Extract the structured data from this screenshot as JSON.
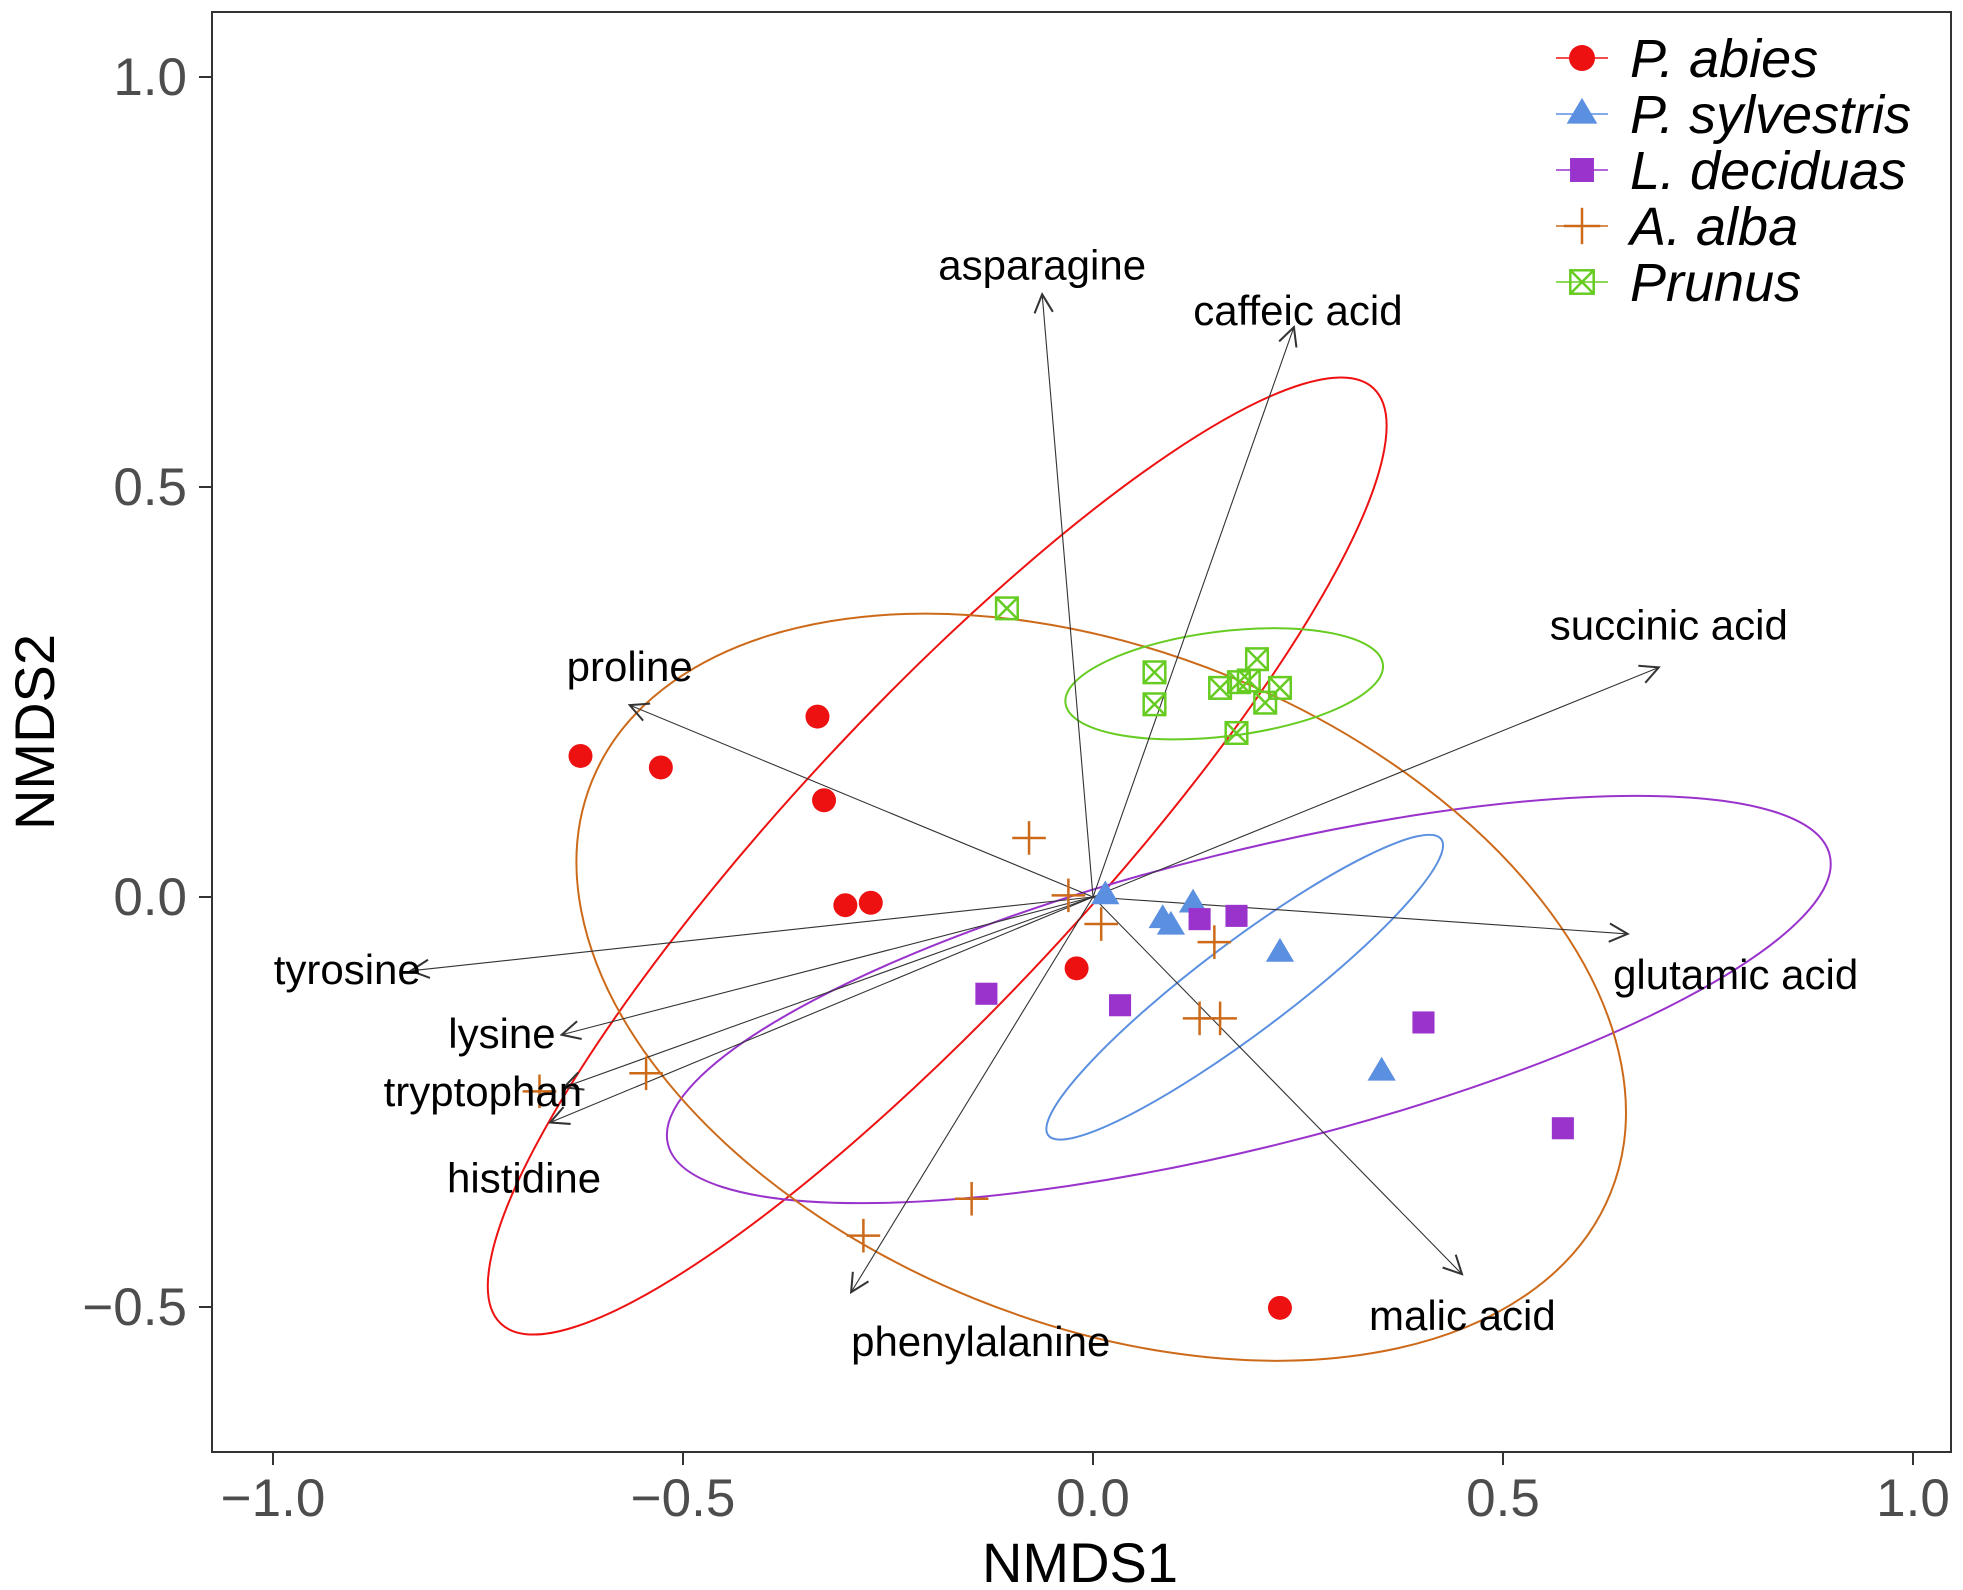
{
  "chart_data": {
    "type": "scatter",
    "xlabel": "NMDS1",
    "ylabel": "NMDS2",
    "xlim": [
      -1.08,
      1.05
    ],
    "ylim": [
      -0.68,
      1.08
    ],
    "x_ticks": [
      {
        "value": -1.0,
        "label": "−1.0"
      },
      {
        "value": -0.5,
        "label": "−0.5"
      },
      {
        "value": 0.0,
        "label": "0.0"
      },
      {
        "value": 0.5,
        "label": "0.5"
      },
      {
        "value": 1.0,
        "label": "1.0"
      }
    ],
    "y_ticks": [
      {
        "value": -0.5,
        "label": "−0.5"
      },
      {
        "value": 0.0,
        "label": "0.0"
      },
      {
        "value": 0.5,
        "label": "0.5"
      },
      {
        "value": 1.0,
        "label": "1.0"
      }
    ],
    "series": [
      {
        "name": "P. abies",
        "color": "#ee1111",
        "marker": "circle",
        "points": [
          [
            -0.625,
            0.172
          ],
          [
            -0.527,
            0.158
          ],
          [
            -0.336,
            0.22
          ],
          [
            -0.328,
            0.118
          ],
          [
            -0.302,
            -0.01
          ],
          [
            -0.271,
            -0.007
          ],
          [
            -0.02,
            -0.087
          ],
          [
            0.228,
            -0.501
          ]
        ],
        "ellipse": {
          "cx": -0.19,
          "cy": 0.05,
          "rx": 0.78,
          "ry": 0.18,
          "angle_deg": -47
        }
      },
      {
        "name": "P. sylvestris",
        "color": "#5b8fe0",
        "marker": "triangle",
        "points": [
          [
            0.015,
            0.002
          ],
          [
            0.085,
            -0.027
          ],
          [
            0.095,
            -0.035
          ],
          [
            0.122,
            -0.008
          ],
          [
            0.228,
            -0.068
          ],
          [
            0.352,
            -0.213
          ]
        ],
        "ellipse": {
          "cx": 0.185,
          "cy": -0.11,
          "rx": 0.3,
          "ry": 0.055,
          "angle_deg": -37
        }
      },
      {
        "name": "L. deciduas",
        "color": "#9933cc",
        "marker": "square",
        "points": [
          [
            -0.13,
            -0.118
          ],
          [
            0.033,
            -0.132
          ],
          [
            0.13,
            -0.027
          ],
          [
            0.175,
            -0.023
          ],
          [
            0.403,
            -0.153
          ],
          [
            0.573,
            -0.282
          ]
        ],
        "ellipse": {
          "cx": 0.19,
          "cy": -0.125,
          "rx": 0.73,
          "ry": 0.18,
          "angle_deg": -14
        }
      },
      {
        "name": "A. alba",
        "color": "#cc6a1a",
        "marker": "plus",
        "points": [
          [
            -0.675,
            -0.237
          ],
          [
            -0.545,
            -0.215
          ],
          [
            -0.28,
            -0.413
          ],
          [
            -0.148,
            -0.368
          ],
          [
            -0.078,
            0.072
          ],
          [
            -0.03,
            0.002
          ],
          [
            0.01,
            -0.033
          ],
          [
            0.148,
            -0.055
          ],
          [
            0.13,
            -0.148
          ],
          [
            0.155,
            -0.148
          ]
        ],
        "ellipse": {
          "cx": 0.01,
          "cy": -0.11,
          "rx": 0.67,
          "ry": 0.41,
          "angle_deg": 22
        }
      },
      {
        "name": "Prunus",
        "color": "#66cc22",
        "marker": "boxed-x",
        "points": [
          [
            -0.105,
            0.352
          ],
          [
            0.075,
            0.274
          ],
          [
            0.075,
            0.235
          ],
          [
            0.155,
            0.255
          ],
          [
            0.175,
            0.2
          ],
          [
            0.178,
            0.262
          ],
          [
            0.19,
            0.264
          ],
          [
            0.2,
            0.29
          ],
          [
            0.21,
            0.237
          ],
          [
            0.228,
            0.255
          ]
        ],
        "ellipse": {
          "cx": 0.16,
          "cy": 0.26,
          "rx": 0.195,
          "ry": 0.064,
          "angle_deg": -7
        }
      }
    ],
    "vectors": [
      {
        "label": "asparagine",
        "x": -0.062,
        "y": 0.735
      },
      {
        "label": "caffeic acid",
        "x": 0.245,
        "y": 0.695
      },
      {
        "label": "succinic acid",
        "x": 0.69,
        "y": 0.28
      },
      {
        "label": "proline",
        "x": -0.565,
        "y": 0.234
      },
      {
        "label": "tyrosine",
        "x": -0.832,
        "y": -0.09
      },
      {
        "label": "glutamic acid",
        "x": 0.652,
        "y": -0.045
      },
      {
        "label": "lysine",
        "x": -0.648,
        "y": -0.168
      },
      {
        "label": "tryptophan",
        "x": -0.645,
        "y": -0.232
      },
      {
        "label": "histidine",
        "x": -0.662,
        "y": -0.275
      },
      {
        "label": "phenylalanine",
        "x": -0.295,
        "y": -0.482
      },
      {
        "label": "malic acid",
        "x": 0.45,
        "y": -0.46
      }
    ],
    "legend_position": "top-right"
  }
}
